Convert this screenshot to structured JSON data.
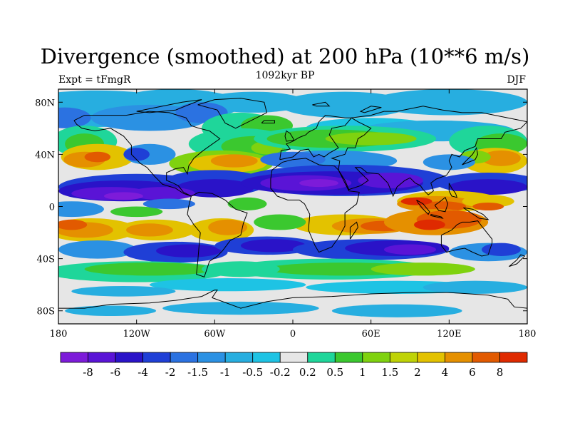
{
  "title": "Divergence (smoothed) at 200 hPa (10**6 m/s)",
  "experiment": "Expt = tFmgR",
  "period": "1092kyr BP",
  "season": "DJF",
  "colors": {
    "background": "#e6e6e6",
    "neg8": "#7d1bd9",
    "neg6": "#5a14d6",
    "neg4": "#2a13c8",
    "neg2": "#1f3fd6",
    "neg15": "#2b72e1",
    "neg1": "#2b91e3",
    "neg05": "#27aee0",
    "neg02": "#1ec3e4",
    "pos02": "#1fd69a",
    "pos05": "#3bc82f",
    "pos1": "#7fd20f",
    "pos15": "#bfd307",
    "pos2": "#e3c200",
    "pos4": "#e59000",
    "pos6": "#e25a00",
    "pos8": "#df2a00",
    "coast": "#000000"
  },
  "chart_data": {
    "type": "heatmap",
    "title": "Divergence (smoothed) at 200 hPa (10**6 m/s)",
    "x_ticks": [
      "180",
      "120W",
      "60W",
      "0",
      "60E",
      "120E",
      "180"
    ],
    "y_ticks": [
      "80N",
      "40N",
      "0",
      "40S",
      "80S"
    ],
    "xlim": [
      -180,
      180
    ],
    "ylim": [
      -90,
      90
    ],
    "colorbar_labels": [
      "-8",
      "-6",
      "-4",
      "-2",
      "-1.5",
      "-1",
      "-0.5",
      "-0.2",
      "0.2",
      "0.5",
      "1",
      "1.5",
      "2",
      "4",
      "6",
      "8"
    ],
    "colorbar_colors": [
      "#7d1bd9",
      "#5a14d6",
      "#2a13c8",
      "#1f3fd6",
      "#2b72e1",
      "#2b91e3",
      "#27aee0",
      "#1ec3e4",
      "#e6e6e6",
      "#1fd69a",
      "#3bc82f",
      "#7fd20f",
      "#bfd307",
      "#e3c200",
      "#e59000",
      "#e25a00",
      "#df2a00"
    ],
    "bands": [
      {
        "lat_range": [
          60,
          90
        ],
        "value": -0.5
      },
      {
        "lat_range": [
          40,
          60
        ],
        "value": 1
      },
      {
        "lat_range": [
          20,
          40
        ],
        "value": -1
      },
      {
        "lat_range": [
          -10,
          20
        ],
        "value": -4
      },
      {
        "lat_range": [
          -30,
          -10
        ],
        "value": 4
      },
      {
        "lat_range": [
          -45,
          -30
        ],
        "value": -2
      },
      {
        "lat_range": [
          -60,
          -45
        ],
        "value": 0.5
      },
      {
        "lat_range": [
          -90,
          -60
        ],
        "value": 0
      }
    ]
  }
}
